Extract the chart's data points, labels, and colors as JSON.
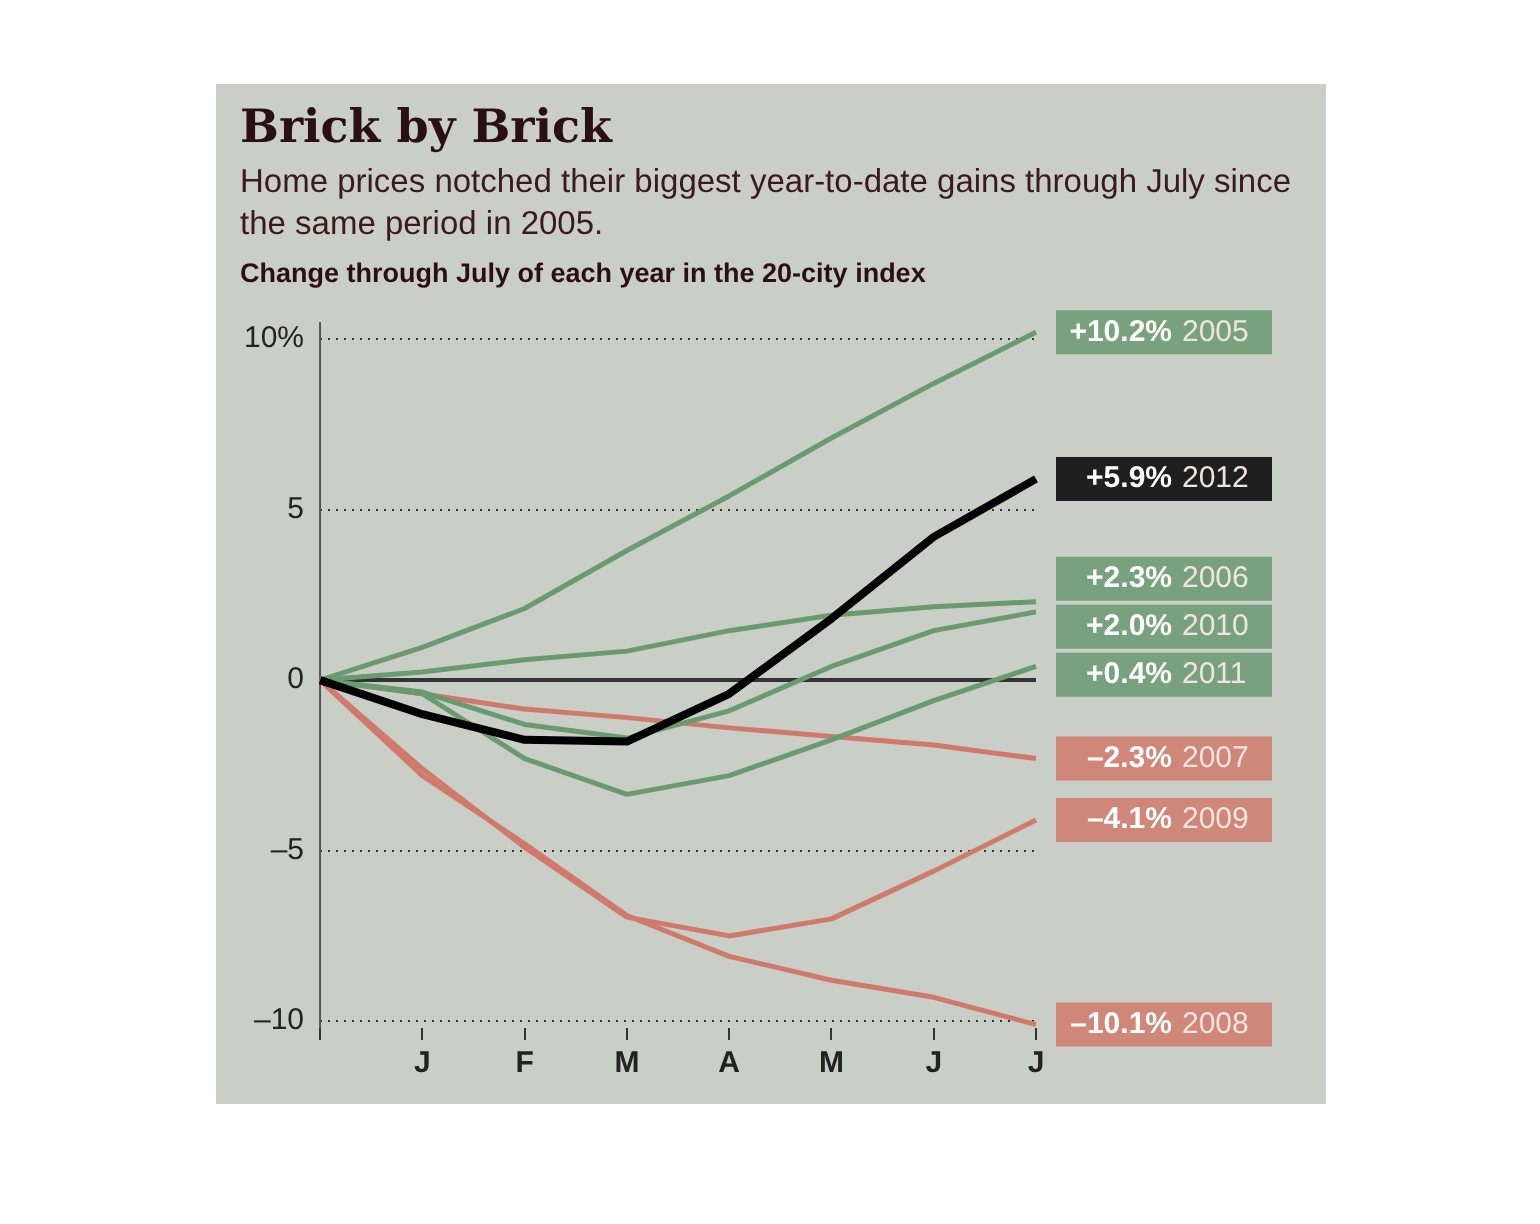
{
  "chart_data": {
    "type": "line",
    "title": "Brick by Brick",
    "subtitle": "Home prices notched their biggest year-to-date gains through July since the same period in 2005.",
    "annotations": [
      "Change through July of each year in the 20-city index"
    ],
    "categories": [
      null,
      "J",
      "F",
      "M",
      "A",
      "M",
      "J",
      "J"
    ],
    "series": [
      {
        "name": "2012",
        "color": "#000000",
        "values": [
          0,
          -1.0,
          -1.75,
          -1.8,
          -0.4,
          1.8,
          4.2,
          5.9
        ],
        "value_labels": [
          null,
          null,
          null,
          null,
          null,
          null,
          null,
          "+5.9%"
        ]
      },
      {
        "name": "2005",
        "color": "#6a9a70",
        "values": [
          0,
          0.96,
          2.1,
          3.8,
          5.4,
          7.1,
          8.7,
          10.2
        ],
        "value_labels": [
          null,
          null,
          null,
          null,
          null,
          null,
          null,
          "+10.2%"
        ]
      },
      {
        "name": "2006",
        "color": "#6a9a70",
        "values": [
          0,
          0.24,
          0.6,
          0.85,
          1.45,
          1.9,
          2.15,
          2.3
        ],
        "value_labels": [
          null,
          null,
          null,
          null,
          null,
          null,
          null,
          "+2.3%"
        ]
      },
      {
        "name": "2010",
        "color": "#6a9a70",
        "values": [
          0,
          -0.35,
          -1.3,
          -1.7,
          -0.9,
          0.4,
          1.45,
          2.0
        ],
        "value_labels": [
          null,
          null,
          null,
          null,
          null,
          null,
          null,
          "+2.0%"
        ]
      },
      {
        "name": "2011",
        "color": "#6a9a70",
        "values": [
          0,
          -0.4,
          -2.3,
          -3.35,
          -2.8,
          -1.75,
          -0.6,
          0.4
        ],
        "value_labels": [
          null,
          null,
          null,
          null,
          null,
          null,
          null,
          "+0.4%"
        ]
      },
      {
        "name": "2007",
        "color": "#d07a6c",
        "values": [
          0,
          -0.4,
          -0.85,
          -1.1,
          -1.4,
          -1.65,
          -1.9,
          -2.3
        ],
        "value_labels": [
          null,
          null,
          null,
          null,
          null,
          null,
          null,
          "–2.3%"
        ]
      },
      {
        "name": "2009",
        "color": "#d07a6c",
        "values": [
          0,
          -2.6,
          -4.9,
          -6.95,
          -7.5,
          -7.0,
          -5.6,
          -4.1
        ],
        "value_labels": [
          null,
          null,
          null,
          null,
          null,
          null,
          null,
          "–4.1%"
        ]
      },
      {
        "name": "2008",
        "color": "#d07a6c",
        "values": [
          0,
          -2.8,
          -4.8,
          -6.9,
          -8.1,
          -8.8,
          -9.3,
          -10.1
        ],
        "value_labels": [
          null,
          null,
          null,
          null,
          null,
          null,
          null,
          "–10.1%"
        ]
      }
    ],
    "ylim": [
      -10.2,
      10.5
    ],
    "yticks": [
      {
        "value": 10,
        "label": "10%"
      },
      5,
      0,
      {
        "value": -5,
        "label": "–5"
      },
      {
        "value": -10,
        "label": "–10"
      }
    ],
    "ref_lines": [
      {
        "axis": "y",
        "value": 0,
        "color": "#333333"
      }
    ],
    "grid": "y",
    "legend": false,
    "marker": "none",
    "line_style": "solid"
  }
}
